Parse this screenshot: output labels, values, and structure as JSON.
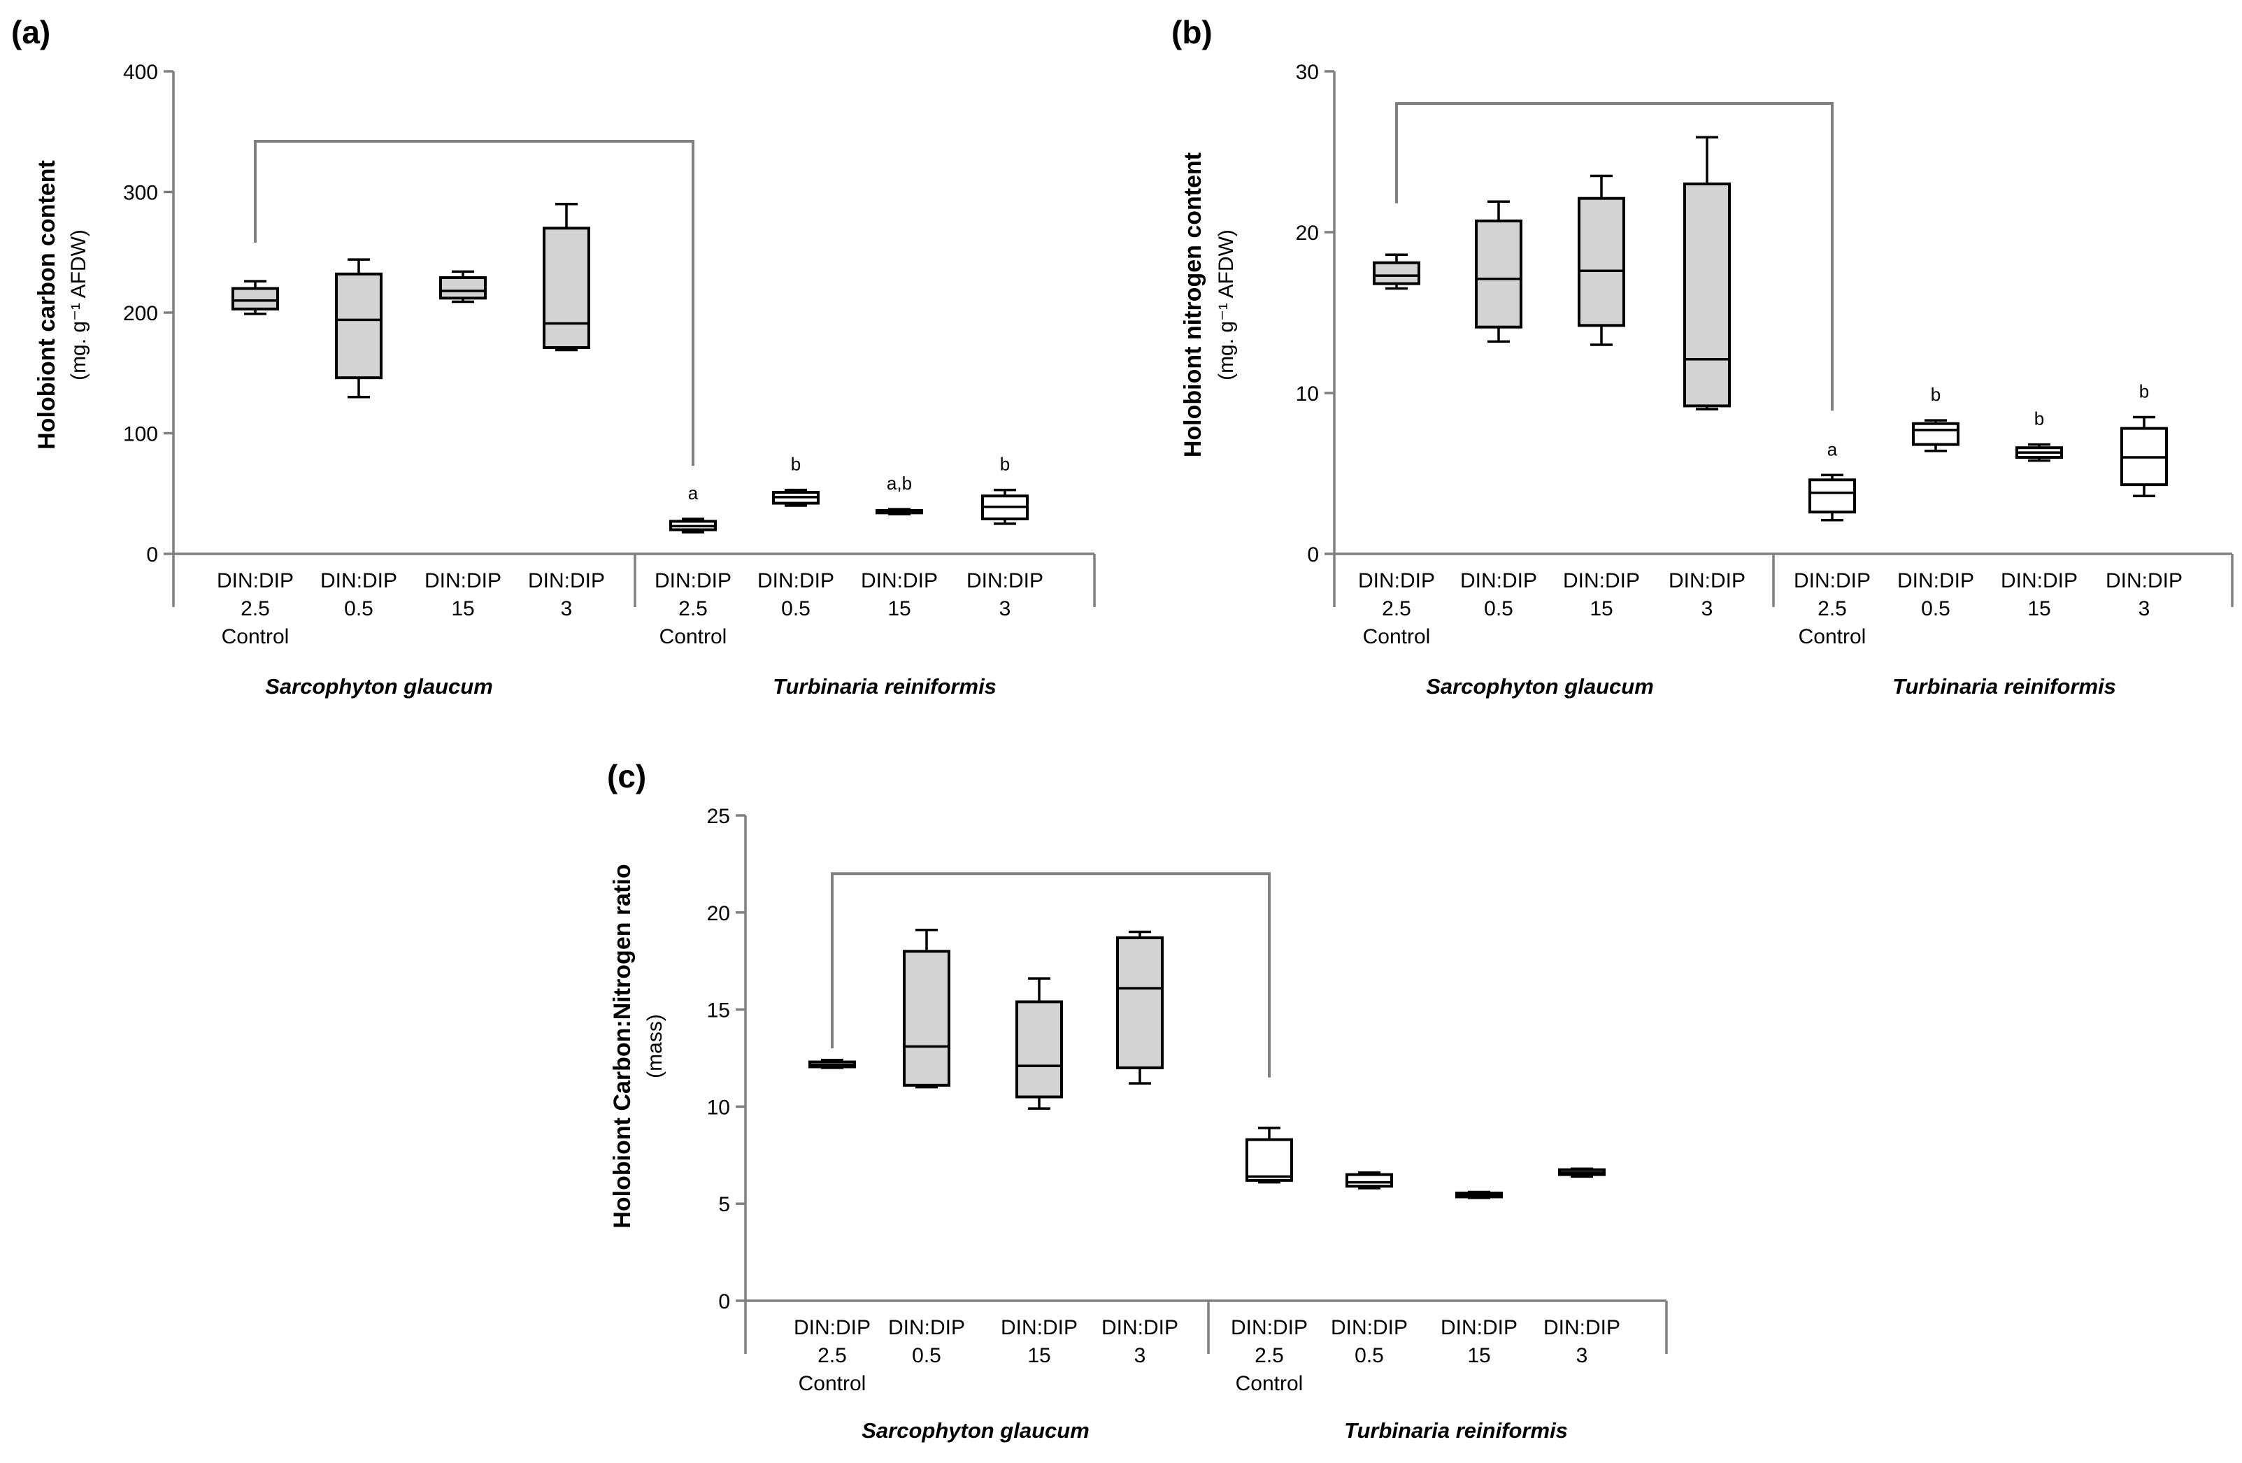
{
  "colors": {
    "sarcophyton_fill": "#d3d3d3",
    "turbinaria_fill": "#ffffff",
    "axis": "#808080",
    "box_stroke": "#000000"
  },
  "chart_data": [
    {
      "type": "box",
      "panel": "(a)",
      "ylabel": "Holobiont carbon content",
      "ylabel_unit": "(mg. g⁻¹ AFDW)",
      "ylim": [
        0,
        400
      ],
      "yticks": [
        0,
        100,
        200,
        300,
        400
      ],
      "groups": [
        "Sarcophyton glaucum",
        "Turbinaria reiniformis"
      ],
      "categories": [
        [
          "DIN:DIP",
          "2.5",
          "Control"
        ],
        [
          "DIN:DIP",
          "0.5"
        ],
        [
          "DIN:DIP",
          "15"
        ],
        [
          "DIN:DIP",
          "3"
        ],
        [
          "DIN:DIP",
          "2.5",
          "Control"
        ],
        [
          "DIN:DIP",
          "0.5"
        ],
        [
          "DIN:DIP",
          "15"
        ],
        [
          "DIN:DIP",
          "3"
        ]
      ],
      "boxes": [
        {
          "group": 0,
          "min": 199,
          "q1": 203,
          "median": 210,
          "q3": 220,
          "max": 226
        },
        {
          "group": 0,
          "min": 130,
          "q1": 146,
          "median": 194,
          "q3": 232,
          "max": 244
        },
        {
          "group": 0,
          "min": 209,
          "q1": 212,
          "median": 218,
          "q3": 229,
          "max": 234
        },
        {
          "group": 0,
          "min": 169,
          "q1": 171,
          "median": 191,
          "q3": 270,
          "max": 290
        },
        {
          "group": 1,
          "min": 18,
          "q1": 20,
          "median": 23,
          "q3": 27,
          "max": 29,
          "letter": "a"
        },
        {
          "group": 1,
          "min": 40,
          "q1": 42,
          "median": 47,
          "q3": 51,
          "max": 53,
          "letter": "b"
        },
        {
          "group": 1,
          "min": 33,
          "q1": 34,
          "median": 35,
          "q3": 36,
          "max": 37,
          "letter": "a,b"
        },
        {
          "group": 1,
          "min": 25,
          "q1": 29,
          "median": 39,
          "q3": 48,
          "max": 53,
          "letter": "b"
        }
      ],
      "bracket": {
        "from": 0,
        "to": 4,
        "level": 342,
        "left_end": 258,
        "right_end": 73
      }
    },
    {
      "type": "box",
      "panel": "(b)",
      "ylabel": "Holobiont nitrogen content",
      "ylabel_unit": "(mg. g⁻¹ AFDW)",
      "ylim": [
        0,
        30
      ],
      "yticks": [
        0,
        10,
        20,
        30
      ],
      "groups": [
        "Sarcophyton glaucum",
        "Turbinaria reiniformis"
      ],
      "categories": [
        [
          "DIN:DIP",
          "2.5",
          "Control"
        ],
        [
          "DIN:DIP",
          "0.5"
        ],
        [
          "DIN:DIP",
          "15"
        ],
        [
          "DIN:DIP",
          "3"
        ],
        [
          "DIN:DIP",
          "2.5",
          "Control"
        ],
        [
          "DIN:DIP",
          "0.5"
        ],
        [
          "DIN:DIP",
          "15"
        ],
        [
          "DIN:DIP",
          "3"
        ]
      ],
      "boxes": [
        {
          "group": 0,
          "min": 16.5,
          "q1": 16.8,
          "median": 17.3,
          "q3": 18.1,
          "max": 18.6
        },
        {
          "group": 0,
          "min": 13.2,
          "q1": 14.1,
          "median": 17.1,
          "q3": 20.7,
          "max": 21.9
        },
        {
          "group": 0,
          "min": 13.0,
          "q1": 14.2,
          "median": 17.6,
          "q3": 22.1,
          "max": 23.5
        },
        {
          "group": 0,
          "min": 9.0,
          "q1": 9.2,
          "median": 12.1,
          "q3": 23.0,
          "max": 25.9
        },
        {
          "group": 1,
          "min": 2.1,
          "q1": 2.6,
          "median": 3.8,
          "q3": 4.6,
          "max": 4.9,
          "letter": "a"
        },
        {
          "group": 1,
          "min": 6.4,
          "q1": 6.8,
          "median": 7.7,
          "q3": 8.1,
          "max": 8.3,
          "letter": "b"
        },
        {
          "group": 1,
          "min": 5.8,
          "q1": 6.0,
          "median": 6.3,
          "q3": 6.6,
          "max": 6.8,
          "letter": "b"
        },
        {
          "group": 1,
          "min": 3.6,
          "q1": 4.3,
          "median": 6.0,
          "q3": 7.8,
          "max": 8.5,
          "letter": "b"
        }
      ],
      "bracket": {
        "from": 0,
        "to": 4,
        "level": 28.0,
        "left_end": 21.8,
        "right_end": 8.9
      }
    },
    {
      "type": "box",
      "panel": "(c)",
      "ylabel": "Holobiont Carbon:Nitrogen ratio",
      "ylabel_unit": "(mass)",
      "ylim": [
        0,
        25
      ],
      "yticks": [
        0,
        5,
        10,
        15,
        20,
        25
      ],
      "groups": [
        "Sarcophyton glaucum",
        "Turbinaria reiniformis"
      ],
      "categories": [
        [
          "DIN:DIP",
          "2.5",
          "Control"
        ],
        [
          "DIN:DIP",
          "0.5"
        ],
        [
          "DIN:DIP",
          "15"
        ],
        [
          "DIN:DIP",
          "3"
        ],
        [
          "DIN:DIP",
          "2.5",
          "Control"
        ],
        [
          "DIN:DIP",
          "0.5"
        ],
        [
          "DIN:DIP",
          "15"
        ],
        [
          "DIN:DIP",
          "3"
        ]
      ],
      "boxes": [
        {
          "group": 0,
          "min": 12.0,
          "q1": 12.05,
          "median": 12.15,
          "q3": 12.3,
          "max": 12.4
        },
        {
          "group": 0,
          "min": 11.0,
          "q1": 11.1,
          "median": 13.1,
          "q3": 18.0,
          "max": 19.1
        },
        {
          "group": 0,
          "min": 9.9,
          "q1": 10.5,
          "median": 12.1,
          "q3": 15.4,
          "max": 16.6
        },
        {
          "group": 0,
          "min": 11.2,
          "q1": 12.0,
          "median": 16.1,
          "q3": 18.7,
          "max": 19.0
        },
        {
          "group": 1,
          "min": 6.1,
          "q1": 6.2,
          "median": 6.4,
          "q3": 8.3,
          "max": 8.9
        },
        {
          "group": 1,
          "min": 5.8,
          "q1": 5.9,
          "median": 6.1,
          "q3": 6.5,
          "max": 6.6
        },
        {
          "group": 1,
          "min": 5.3,
          "q1": 5.35,
          "median": 5.45,
          "q3": 5.55,
          "max": 5.6
        },
        {
          "group": 1,
          "min": 6.4,
          "q1": 6.5,
          "median": 6.6,
          "q3": 6.75,
          "max": 6.8
        }
      ],
      "bracket": {
        "from": 0,
        "to": 4,
        "level": 22.0,
        "left_end": 13.0,
        "right_end": 11.5
      }
    }
  ]
}
